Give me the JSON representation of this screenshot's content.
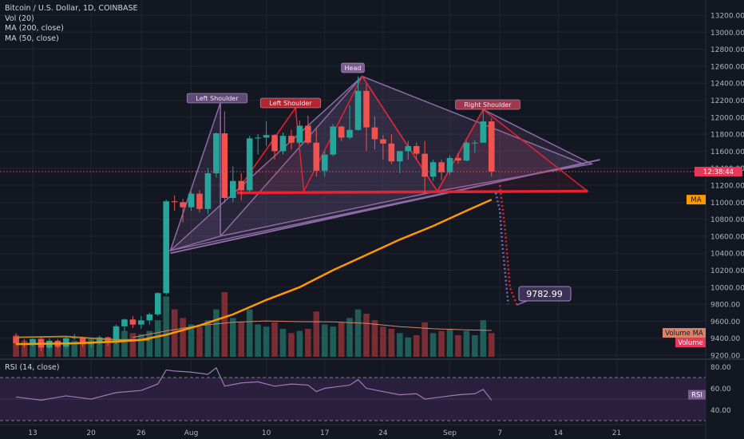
{
  "legend": {
    "symbol": "Bitcoin / U.S. Dollar, 1D, COINBASE",
    "vol": "Vol (20)",
    "ma200": "MA (200, close)",
    "ma50": "MA (50, close)"
  },
  "rsi_legend": "RSI (14, close)",
  "badges": {
    "time": "12:38:44",
    "ma": "MA",
    "volume_ma": "Volume MA",
    "volume": "Volume",
    "rsi": "RSI",
    "target": "9782.99"
  },
  "annotations": {
    "head": "Head",
    "left_shoulder_1": "Left Shoulder",
    "left_shoulder_2": "Left Shoulder",
    "right_shoulder": "Right Shoulder"
  },
  "colors": {
    "up": "#26a69a",
    "down": "#ef5350",
    "ma50": "#ff9800",
    "neckline": "#e8222f",
    "pattern": "#8f6aa6",
    "rsi_band": "#2a1f3d",
    "rsi_line": "#9d7ab7",
    "background": "#131722"
  },
  "chart_data": {
    "type": "candlestick",
    "price_axis": {
      "min": 9200,
      "max": 13200,
      "step": 200,
      "labels": [
        "13200.00",
        "13000.00",
        "12800.00",
        "12600.00",
        "12400.00",
        "12200.00",
        "12000.00",
        "11800.00",
        "11600.00",
        "11400.00",
        "11200.00",
        "11000.00",
        "10800.00",
        "10600.00",
        "10400.00",
        "10200.00",
        "10000.00",
        "9800.00",
        "9600.00",
        "9400.00",
        "9200.00"
      ]
    },
    "rsi_axis": {
      "min": 30,
      "max": 85,
      "labels": [
        "80.00",
        "60.00",
        "40.00"
      ],
      "values": [
        80,
        60,
        40
      ],
      "bands": [
        70,
        30
      ]
    },
    "time_axis": [
      {
        "label": "13",
        "day": 0
      },
      {
        "label": "20",
        "day": 7
      },
      {
        "label": "26",
        "day": 13
      },
      {
        "label": "Aug",
        "day": 19
      },
      {
        "label": "10",
        "day": 28
      },
      {
        "label": "17",
        "day": 35
      },
      {
        "label": "24",
        "day": 42
      },
      {
        "label": "Sep",
        "day": 50
      },
      {
        "label": "7",
        "day": 56
      },
      {
        "label": "14",
        "day": 63
      },
      {
        "label": "21",
        "day": 70
      }
    ],
    "candles": [
      {
        "d": -2,
        "o": 9420,
        "h": 9460,
        "l": 9320,
        "c": 9340,
        "v": 1.0
      },
      {
        "d": -1,
        "o": 9340,
        "h": 9390,
        "l": 9290,
        "c": 9320,
        "v": 0.75
      },
      {
        "d": 0,
        "o": 9320,
        "h": 9400,
        "l": 9300,
        "c": 9390,
        "v": 0.8
      },
      {
        "d": 1,
        "o": 9390,
        "h": 9410,
        "l": 9250,
        "c": 9290,
        "v": 0.85
      },
      {
        "d": 2,
        "o": 9290,
        "h": 9400,
        "l": 9270,
        "c": 9370,
        "v": 0.7
      },
      {
        "d": 3,
        "o": 9370,
        "h": 9390,
        "l": 9280,
        "c": 9300,
        "v": 0.6
      },
      {
        "d": 4,
        "o": 9300,
        "h": 9420,
        "l": 9280,
        "c": 9400,
        "v": 0.65
      },
      {
        "d": 5,
        "o": 9400,
        "h": 9450,
        "l": 9380,
        "c": 9410,
        "v": 0.75
      },
      {
        "d": 6,
        "o": 9410,
        "h": 9420,
        "l": 9300,
        "c": 9330,
        "v": 0.9
      },
      {
        "d": 7,
        "o": 9330,
        "h": 9380,
        "l": 9290,
        "c": 9350,
        "v": 0.85
      },
      {
        "d": 8,
        "o": 9350,
        "h": 9430,
        "l": 9320,
        "c": 9410,
        "v": 0.75
      },
      {
        "d": 9,
        "o": 9410,
        "h": 9420,
        "l": 9310,
        "c": 9350,
        "v": 0.7
      },
      {
        "d": 10,
        "o": 9350,
        "h": 9560,
        "l": 9330,
        "c": 9540,
        "v": 1.3
      },
      {
        "d": 11,
        "o": 9540,
        "h": 9630,
        "l": 9480,
        "c": 9620,
        "v": 1.2
      },
      {
        "d": 12,
        "o": 9620,
        "h": 9660,
        "l": 9520,
        "c": 9560,
        "v": 1.1
      },
      {
        "d": 13,
        "o": 9560,
        "h": 9660,
        "l": 9510,
        "c": 9610,
        "v": 1.05
      },
      {
        "d": 14,
        "o": 9610,
        "h": 9700,
        "l": 9560,
        "c": 9680,
        "v": 1.2
      },
      {
        "d": 15,
        "o": 9680,
        "h": 9940,
        "l": 9660,
        "c": 9930,
        "v": 1.7
      },
      {
        "d": 16,
        "o": 9930,
        "h": 11030,
        "l": 9910,
        "c": 11010,
        "v": 2.8
      },
      {
        "d": 17,
        "o": 11010,
        "h": 11080,
        "l": 10900,
        "c": 11000,
        "v": 2.2
      },
      {
        "d": 18,
        "o": 11000,
        "h": 11040,
        "l": 10760,
        "c": 10940,
        "v": 1.8
      },
      {
        "d": 19,
        "o": 10940,
        "h": 11120,
        "l": 10900,
        "c": 11100,
        "v": 1.5
      },
      {
        "d": 20,
        "o": 11100,
        "h": 11140,
        "l": 10880,
        "c": 10920,
        "v": 1.4
      },
      {
        "d": 21,
        "o": 10920,
        "h": 11400,
        "l": 10860,
        "c": 11340,
        "v": 1.7
      },
      {
        "d": 22,
        "o": 11340,
        "h": 11820,
        "l": 11290,
        "c": 11810,
        "v": 2.2
      },
      {
        "d": 23,
        "o": 11810,
        "h": 12070,
        "l": 10990,
        "c": 11050,
        "v": 3.0
      },
      {
        "d": 24,
        "o": 11050,
        "h": 11420,
        "l": 11000,
        "c": 11250,
        "v": 1.8
      },
      {
        "d": 25,
        "o": 11250,
        "h": 11340,
        "l": 11020,
        "c": 11140,
        "v": 1.6
      },
      {
        "d": 26,
        "o": 11140,
        "h": 11780,
        "l": 11120,
        "c": 11750,
        "v": 2.2
      },
      {
        "d": 27,
        "o": 11750,
        "h": 11800,
        "l": 11560,
        "c": 11760,
        "v": 1.5
      },
      {
        "d": 28,
        "o": 11760,
        "h": 11950,
        "l": 11660,
        "c": 11790,
        "v": 1.4
      },
      {
        "d": 29,
        "o": 11790,
        "h": 11800,
        "l": 11500,
        "c": 11600,
        "v": 1.6
      },
      {
        "d": 30,
        "o": 11600,
        "h": 11820,
        "l": 11560,
        "c": 11780,
        "v": 1.3
      },
      {
        "d": 31,
        "o": 11780,
        "h": 11850,
        "l": 11620,
        "c": 11700,
        "v": 1.1
      },
      {
        "d": 32,
        "o": 11700,
        "h": 11960,
        "l": 11680,
        "c": 11900,
        "v": 1.2
      },
      {
        "d": 33,
        "o": 11900,
        "h": 12020,
        "l": 11680,
        "c": 11700,
        "v": 1.3
      },
      {
        "d": 34,
        "o": 11700,
        "h": 11860,
        "l": 11300,
        "c": 11370,
        "v": 2.1
      },
      {
        "d": 35,
        "o": 11370,
        "h": 11600,
        "l": 11300,
        "c": 11560,
        "v": 1.5
      },
      {
        "d": 36,
        "o": 11560,
        "h": 11920,
        "l": 11540,
        "c": 11890,
        "v": 1.4
      },
      {
        "d": 37,
        "o": 11890,
        "h": 11900,
        "l": 11720,
        "c": 11760,
        "v": 1.6
      },
      {
        "d": 38,
        "o": 11760,
        "h": 12140,
        "l": 11740,
        "c": 11850,
        "v": 1.8
      },
      {
        "d": 39,
        "o": 11850,
        "h": 12480,
        "l": 11840,
        "c": 12310,
        "v": 2.2
      },
      {
        "d": 40,
        "o": 12310,
        "h": 12390,
        "l": 11600,
        "c": 11880,
        "v": 2.0
      },
      {
        "d": 41,
        "o": 11880,
        "h": 12010,
        "l": 11620,
        "c": 11740,
        "v": 1.7
      },
      {
        "d": 42,
        "o": 11740,
        "h": 11790,
        "l": 11500,
        "c": 11690,
        "v": 1.4
      },
      {
        "d": 43,
        "o": 11690,
        "h": 11800,
        "l": 11450,
        "c": 11480,
        "v": 1.3
      },
      {
        "d": 44,
        "o": 11480,
        "h": 11600,
        "l": 11340,
        "c": 11600,
        "v": 1.1
      },
      {
        "d": 45,
        "o": 11600,
        "h": 11720,
        "l": 11500,
        "c": 11660,
        "v": 0.9
      },
      {
        "d": 46,
        "o": 11660,
        "h": 11700,
        "l": 11500,
        "c": 11570,
        "v": 1.0
      },
      {
        "d": 47,
        "o": 11570,
        "h": 11720,
        "l": 11100,
        "c": 11300,
        "v": 1.6
      },
      {
        "d": 48,
        "o": 11300,
        "h": 11500,
        "l": 11250,
        "c": 11470,
        "v": 1.1
      },
      {
        "d": 49,
        "o": 11470,
        "h": 11500,
        "l": 11260,
        "c": 11350,
        "v": 1.2
      },
      {
        "d": 50,
        "o": 11350,
        "h": 11550,
        "l": 11320,
        "c": 11520,
        "v": 1.3
      },
      {
        "d": 51,
        "o": 11520,
        "h": 11580,
        "l": 11450,
        "c": 11490,
        "v": 1.0
      },
      {
        "d": 52,
        "o": 11490,
        "h": 11720,
        "l": 11480,
        "c": 11700,
        "v": 1.2
      },
      {
        "d": 53,
        "o": 11700,
        "h": 11730,
        "l": 11580,
        "c": 11700,
        "v": 1.0
      },
      {
        "d": 54,
        "o": 11700,
        "h": 12080,
        "l": 11700,
        "c": 11950,
        "v": 1.7
      },
      {
        "d": 55,
        "o": 11950,
        "h": 11990,
        "l": 11300,
        "c": 11360,
        "v": 1.1
      }
    ],
    "ma50": [
      [
        -2,
        9330
      ],
      [
        5,
        9340
      ],
      [
        10,
        9360
      ],
      [
        13,
        9380
      ],
      [
        16,
        9440
      ],
      [
        20,
        9550
      ],
      [
        24,
        9680
      ],
      [
        28,
        9850
      ],
      [
        32,
        10000
      ],
      [
        36,
        10200
      ],
      [
        40,
        10380
      ],
      [
        44,
        10560
      ],
      [
        48,
        10720
      ],
      [
        52,
        10900
      ],
      [
        55,
        11030
      ]
    ],
    "ma200": [
      [
        -2,
        9410
      ],
      [
        4,
        9420
      ],
      [
        10,
        9380
      ],
      [
        14,
        9380
      ]
    ],
    "volume_ma": [
      [
        12,
        0.9
      ],
      [
        16,
        1.2
      ],
      [
        20,
        1.45
      ],
      [
        24,
        1.6
      ],
      [
        28,
        1.66
      ],
      [
        32,
        1.63
      ],
      [
        36,
        1.62
      ],
      [
        40,
        1.55
      ],
      [
        44,
        1.4
      ],
      [
        48,
        1.3
      ],
      [
        52,
        1.25
      ],
      [
        55,
        1.22
      ]
    ],
    "rsi": [
      [
        -2,
        52
      ],
      [
        1,
        49
      ],
      [
        4,
        53
      ],
      [
        7,
        50
      ],
      [
        10,
        56
      ],
      [
        13,
        58
      ],
      [
        15,
        64
      ],
      [
        16,
        77
      ],
      [
        17,
        76
      ],
      [
        19,
        75
      ],
      [
        21,
        73
      ],
      [
        22,
        79
      ],
      [
        23,
        62
      ],
      [
        25,
        65
      ],
      [
        27,
        66
      ],
      [
        29,
        62
      ],
      [
        31,
        64
      ],
      [
        33,
        63
      ],
      [
        34,
        57
      ],
      [
        35,
        60
      ],
      [
        37,
        62
      ],
      [
        38,
        63
      ],
      [
        39,
        68
      ],
      [
        40,
        60
      ],
      [
        42,
        57
      ],
      [
        44,
        54
      ],
      [
        46,
        55
      ],
      [
        47,
        50
      ],
      [
        49,
        52
      ],
      [
        51,
        54
      ],
      [
        53,
        55
      ],
      [
        54,
        59
      ],
      [
        55,
        49
      ]
    ],
    "price_line": 11360,
    "target_value": 9782.99
  }
}
